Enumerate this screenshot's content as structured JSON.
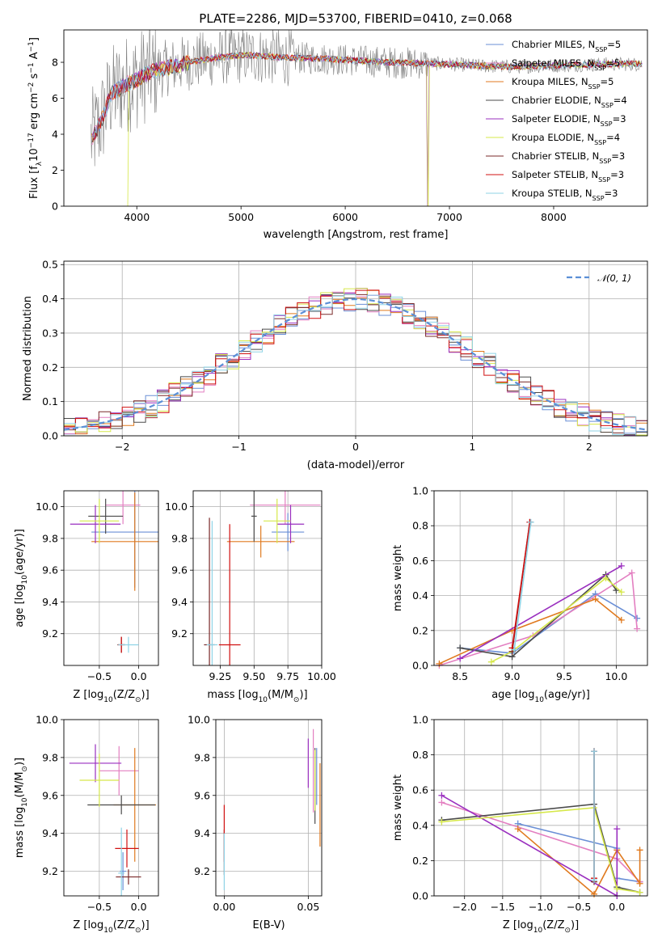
{
  "figure": {
    "title": "PLATE=2286, MJD=53700, FIBERID=0410, z=0.068"
  },
  "colors": {
    "Chabrier MILES": "#6a8fd6",
    "Salpeter MILES": "#e37fc1",
    "Kroupa MILES": "#e07a1f",
    "Chabrier ELODIE": "#4b4b4b",
    "Salpeter ELODIE": "#9a2fbf",
    "Kroupa ELODIE": "#d6e84a",
    "Chabrier STELIB": "#7a2a2a",
    "Salpeter STELIB": "#d01010",
    "Kroupa STELIB": "#8fd3e6",
    "data": "#808080",
    "gaussian": "#5b8fd6"
  },
  "chart_data": [
    {
      "id": "spectrum",
      "type": "line",
      "title": "PLATE=2286, MJD=53700, FIBERID=0410, z=0.068",
      "xlabel": "wavelength [Angstrom, rest frame]",
      "ylabel": "Flux [f_λ 10^-17 erg cm^-2 s^-1 A^-1]",
      "xlim": [
        3300,
        8900
      ],
      "ylim": [
        0,
        9.8
      ],
      "xticks": [
        4000,
        5000,
        6000,
        7000,
        8000
      ],
      "yticks": [
        0,
        2,
        4,
        6,
        8
      ],
      "grid": false,
      "legend_position": "top-right",
      "legend": [
        {
          "name": "Chabrier MILES",
          "text": "Chabrier MILES, N",
          "sub": "SSP",
          "count": "=5"
        },
        {
          "name": "Salpeter MILES",
          "text": "Salpeter MILES, N",
          "sub": "SSP",
          "count": "=5"
        },
        {
          "name": "Kroupa MILES",
          "text": "Kroupa MILES, N",
          "sub": "SSP",
          "count": "=5"
        },
        {
          "name": "Chabrier ELODIE",
          "text": "Chabrier ELODIE, N",
          "sub": "SSP",
          "count": "=4"
        },
        {
          "name": "Salpeter ELODIE",
          "text": "Salpeter ELODIE, N",
          "sub": "SSP",
          "count": "=3"
        },
        {
          "name": "Kroupa ELODIE",
          "text": "Kroupa ELODIE, N",
          "sub": "SSP",
          "count": "=4"
        },
        {
          "name": "Chabrier STELIB",
          "text": "Chabrier STELIB, N",
          "sub": "SSP",
          "count": "=3"
        },
        {
          "name": "Salpeter STELIB",
          "text": "Salpeter STELIB, N",
          "sub": "SSP",
          "count": "=3"
        },
        {
          "name": "Kroupa STELIB",
          "text": "Kroupa STELIB, N",
          "sub": "SSP",
          "count": "=3"
        }
      ],
      "continuum": {
        "x": [
          3550,
          3650,
          3750,
          3900,
          4000,
          4100,
          4300,
          4500,
          4700,
          4900,
          5100,
          5300,
          5500,
          5800,
          6100,
          6400,
          6700,
          7000,
          7300,
          7600,
          7900,
          8200,
          8500,
          8850
        ],
        "y": [
          3.6,
          4.6,
          6.2,
          6.8,
          7.0,
          7.4,
          7.7,
          8.0,
          8.2,
          8.35,
          8.4,
          8.3,
          8.25,
          8.2,
          8.1,
          8.0,
          7.95,
          7.9,
          7.8,
          7.75,
          7.8,
          7.85,
          7.9,
          7.9
        ]
      }
    },
    {
      "id": "residuals",
      "type": "histogram",
      "xlabel": "(data-model)/error",
      "ylabel": "Normed distribution",
      "xlim": [
        -2.5,
        2.5
      ],
      "ylim": [
        0,
        0.51
      ],
      "xticks": [
        -2,
        -1,
        0,
        1,
        2
      ],
      "xtick_labels": [
        "−2",
        "−1",
        "0",
        "1",
        "2"
      ],
      "yticks": [
        0.0,
        0.1,
        0.2,
        0.3,
        0.4,
        0.5
      ],
      "ytick_labels": [
        "0.0",
        "0.1",
        "0.2",
        "0.3",
        "0.4",
        "0.5"
      ],
      "grid": true,
      "legend_position": "top-right",
      "gaussian_label": "𝒩(0, 1)",
      "bin_width": 0.1
    },
    {
      "id": "age-vs-Z",
      "type": "errorbar",
      "xlabel": "Z [log10(Z/Z☉)]",
      "ylabel": "age [log10(age/yr)]",
      "xlim": [
        -0.95,
        0.25
      ],
      "ylim": [
        9.0,
        10.1
      ],
      "xticks": [
        -0.5,
        0.0
      ],
      "xtick_labels": [
        "−0.5",
        "0.0"
      ],
      "yticks": [
        9.2,
        9.4,
        9.6,
        9.8,
        10.0
      ],
      "ytick_labels": [
        "9.2",
        "9.4",
        "9.6",
        "9.8",
        "10.0"
      ],
      "grid": true,
      "points": [
        {
          "model": "Chabrier MILES",
          "x": -0.05,
          "xerr": 0.55,
          "y": 9.84,
          "yerr": 0.35
        },
        {
          "model": "Salpeter MILES",
          "x": -0.2,
          "xerr": 0.22,
          "y": 10.01,
          "yerr": 0.12
        },
        {
          "model": "Kroupa MILES",
          "x": -0.05,
          "xerr": 0.55,
          "y": 9.78,
          "yerr": 0.31
        },
        {
          "model": "Chabrier ELODIE",
          "x": -0.42,
          "xerr": 0.22,
          "y": 9.94,
          "yerr": 0.11
        },
        {
          "model": "Salpeter ELODIE",
          "x": -0.55,
          "xerr": 0.32,
          "y": 9.89,
          "yerr": 0.12
        },
        {
          "model": "Kroupa ELODIE",
          "x": -0.5,
          "xerr": 0.25,
          "y": 9.91,
          "yerr": 0.14
        },
        {
          "model": "Chabrier STELIB",
          "x": -0.22,
          "xerr": 0.05,
          "y": 9.13,
          "yerr": 0.05
        },
        {
          "model": "Salpeter STELIB",
          "x": -0.22,
          "xerr": 0.04,
          "y": 9.13,
          "yerr": 0.05
        },
        {
          "model": "Kroupa STELIB",
          "x": -0.13,
          "xerr": 0.13,
          "y": 9.13,
          "yerr": 0.05
        }
      ]
    },
    {
      "id": "age-vs-mass",
      "type": "errorbar",
      "xlabel": "mass [log10(M/M☉)]",
      "xlim": [
        9.05,
        10.0
      ],
      "ylim": [
        9.0,
        10.1
      ],
      "xticks": [
        9.25,
        9.5,
        9.75,
        10.0
      ],
      "xtick_labels": [
        "9.25",
        "9.50",
        "9.75",
        "10.00"
      ],
      "yticks": [
        9.2,
        9.4,
        9.6,
        9.8,
        10.0
      ],
      "ytick_labels": [
        "9.2",
        "9.4",
        "9.6",
        "9.8",
        "10.0"
      ],
      "grid": true,
      "points": [
        {
          "model": "Chabrier MILES",
          "x": 9.75,
          "xerr": 0.12,
          "y": 9.84,
          "yerr": 0.12
        },
        {
          "model": "Salpeter MILES",
          "x": 9.73,
          "xerr": 0.26,
          "y": 10.01,
          "yerr": 0.12
        },
        {
          "model": "Kroupa MILES",
          "x": 9.55,
          "xerr": 0.25,
          "y": 9.78,
          "yerr": 0.1
        },
        {
          "model": "Chabrier ELODIE",
          "x": 9.5,
          "xerr": 0.02,
          "y": 9.94,
          "yerr": 0.16
        },
        {
          "model": "Salpeter ELODIE",
          "x": 9.77,
          "xerr": 0.1,
          "y": 9.89,
          "yerr": 0.12
        },
        {
          "model": "Kroupa ELODIE",
          "x": 9.67,
          "xerr": 0.1,
          "y": 9.91,
          "yerr": 0.14
        },
        {
          "model": "Chabrier STELIB",
          "x": 9.17,
          "xerr": 0.04,
          "y": 9.13,
          "yerr": 0.8
        },
        {
          "model": "Salpeter STELIB",
          "x": 9.32,
          "xerr": 0.08,
          "y": 9.13,
          "yerr": 0.76
        },
        {
          "model": "Kroupa STELIB",
          "x": 9.19,
          "xerr": 0.04,
          "y": 9.13,
          "yerr": 0.78
        }
      ]
    },
    {
      "id": "weight-vs-age",
      "type": "line",
      "xlabel": "age [log10(age/yr)]",
      "ylabel": "mass weight",
      "xlim": [
        8.25,
        10.3
      ],
      "ylim": [
        0,
        1.0
      ],
      "xticks": [
        8.5,
        9.0,
        9.5,
        10.0
      ],
      "xtick_labels": [
        "8.5",
        "9.0",
        "9.5",
        "10.0"
      ],
      "yticks": [
        0.0,
        0.2,
        0.4,
        0.6,
        0.8,
        1.0
      ],
      "ytick_labels": [
        "0.0",
        "0.2",
        "0.4",
        "0.6",
        "0.8",
        "1.0"
      ],
      "grid": true,
      "series": [
        {
          "model": "Chabrier MILES",
          "x": [
            8.5,
            9.0,
            9.8,
            10.2
          ],
          "y": [
            0.1,
            0.07,
            0.41,
            0.27
          ]
        },
        {
          "model": "Salpeter MILES",
          "x": [
            8.3,
            9.2,
            10.15,
            10.2
          ],
          "y": [
            0.0,
            0.17,
            0.53,
            0.21
          ]
        },
        {
          "model": "Kroupa MILES",
          "x": [
            8.3,
            9.0,
            9.8,
            10.05
          ],
          "y": [
            0.01,
            0.2,
            0.38,
            0.26
          ]
        },
        {
          "model": "Chabrier ELODIE",
          "x": [
            8.5,
            9.0,
            9.9,
            10.0
          ],
          "y": [
            0.1,
            0.05,
            0.52,
            0.43
          ]
        },
        {
          "model": "Salpeter ELODIE",
          "x": [
            8.5,
            10.05
          ],
          "y": [
            0.04,
            0.57
          ]
        },
        {
          "model": "Kroupa ELODIE",
          "x": [
            8.8,
            9.0,
            9.9,
            10.05
          ],
          "y": [
            0.02,
            0.08,
            0.5,
            0.42
          ]
        },
        {
          "model": "Chabrier STELIB",
          "x": [
            9.0,
            9.17
          ],
          "y": [
            0.08,
            0.82
          ]
        },
        {
          "model": "Salpeter STELIB",
          "x": [
            9.0,
            9.17
          ],
          "y": [
            0.1,
            0.82
          ]
        },
        {
          "model": "Kroupa STELIB",
          "x": [
            9.02,
            9.18
          ],
          "y": [
            0.09,
            0.82
          ]
        }
      ]
    },
    {
      "id": "mass-vs-Z",
      "type": "errorbar",
      "xlabel": "Z [log10(Z/Z☉)]",
      "ylabel": "mass [log10(M/M☉)]",
      "xlim": [
        -0.95,
        0.25
      ],
      "ylim": [
        9.07,
        10.0
      ],
      "xticks": [
        -0.5,
        0.0
      ],
      "xtick_labels": [
        "−0.5",
        "0.0"
      ],
      "yticks": [
        9.2,
        9.4,
        9.6,
        9.8,
        10.0
      ],
      "ytick_labels": [
        "9.2",
        "9.4",
        "9.6",
        "9.8",
        "10.0"
      ],
      "grid": true,
      "points": [
        {
          "model": "Chabrier MILES",
          "x": -0.2,
          "xerr": 0.04,
          "y": 9.2,
          "yerr": 0.1
        },
        {
          "model": "Salpeter MILES",
          "x": -0.25,
          "xerr": 0.25,
          "y": 9.73,
          "yerr": 0.13
        },
        {
          "model": "Kroupa MILES",
          "x": -0.05,
          "xerr": 0.27,
          "y": 9.55,
          "yerr": 0.3
        },
        {
          "model": "Chabrier ELODIE",
          "x": -0.22,
          "xerr": 0.43,
          "y": 9.55,
          "yerr": 0.05
        },
        {
          "model": "Salpeter ELODIE",
          "x": -0.55,
          "xerr": 0.33,
          "y": 9.77,
          "yerr": 0.1
        },
        {
          "model": "Kroupa ELODIE",
          "x": -0.5,
          "xerr": 0.25,
          "y": 9.68,
          "yerr": 0.14
        },
        {
          "model": "Chabrier STELIB",
          "x": -0.13,
          "xerr": 0.16,
          "y": 9.17,
          "yerr": 0.04
        },
        {
          "model": "Salpeter STELIB",
          "x": -0.15,
          "xerr": 0.15,
          "y": 9.32,
          "yerr": 0.1
        },
        {
          "model": "Kroupa STELIB",
          "x": -0.22,
          "xerr": 0.04,
          "y": 9.19,
          "yerr": 0.24
        }
      ]
    },
    {
      "id": "mass-vs-ebv",
      "type": "errorbar",
      "xlabel": "E(B-V)",
      "xlim": [
        -0.005,
        0.058
      ],
      "ylim": [
        9.07,
        10.0
      ],
      "xticks": [
        0.0,
        0.05
      ],
      "xtick_labels": [
        "0.00",
        "0.05"
      ],
      "yticks": [
        9.2,
        9.4,
        9.6,
        9.8,
        10.0
      ],
      "ytick_labels": [
        "9.2",
        "9.4",
        "9.6",
        "9.8",
        "10.0"
      ],
      "grid": true,
      "points": [
        {
          "model": "Chabrier MILES",
          "x": 0.055,
          "xerr": 0,
          "y": 9.7,
          "yerr": 0.15
        },
        {
          "model": "Salpeter MILES",
          "x": 0.053,
          "xerr": 0,
          "y": 9.73,
          "yerr": 0.22
        },
        {
          "model": "Kroupa MILES",
          "x": 0.057,
          "xerr": 0,
          "y": 9.55,
          "yerr": 0.22
        },
        {
          "model": "Chabrier ELODIE",
          "x": 0.054,
          "xerr": 0,
          "y": 9.65,
          "yerr": 0.2
        },
        {
          "model": "Salpeter ELODIE",
          "x": 0.05,
          "xerr": 0,
          "y": 9.77,
          "yerr": 0.13
        },
        {
          "model": "Kroupa ELODIE",
          "x": 0.054,
          "xerr": 0,
          "y": 9.68,
          "yerr": 0.16
        },
        {
          "model": "Chabrier STELIB",
          "x": 0.0,
          "xerr": 0,
          "y": 9.3,
          "yerr": 0.12
        },
        {
          "model": "Salpeter STELIB",
          "x": 0.0,
          "xerr": 0,
          "y": 9.4,
          "yerr": 0.15
        },
        {
          "model": "Kroupa STELIB",
          "x": 0.0,
          "xerr": 0,
          "y": 9.25,
          "yerr": 0.15
        }
      ]
    },
    {
      "id": "weight-vs-Z",
      "type": "line",
      "xlabel": "Z [log10(Z/Z☉)]",
      "ylabel": "mass weight",
      "xlim": [
        -2.4,
        0.4
      ],
      "ylim": [
        0,
        1.0
      ],
      "xticks": [
        -2.0,
        -1.5,
        -1.0,
        -0.5,
        0.0
      ],
      "xtick_labels": [
        "−2.0",
        "−1.5",
        "−1.0",
        "−0.5",
        "0.0"
      ],
      "yticks": [
        0.0,
        0.2,
        0.4,
        0.6,
        0.8,
        1.0
      ],
      "ytick_labels": [
        "0.0",
        "0.2",
        "0.4",
        "0.6",
        "0.8",
        "1.0"
      ],
      "grid": true,
      "series": [
        {
          "model": "Chabrier MILES",
          "x": [
            -1.3,
            0.0,
            0.0,
            0.3
          ],
          "y": [
            0.41,
            0.27,
            0.1,
            0.08
          ]
        },
        {
          "model": "Salpeter MILES",
          "x": [
            -2.3,
            0.0,
            0.3
          ],
          "y": [
            0.53,
            0.21,
            0.08
          ]
        },
        {
          "model": "Kroupa MILES",
          "x": [
            -1.3,
            -0.3,
            0.0,
            0.3,
            0.3
          ],
          "y": [
            0.38,
            0.01,
            0.26,
            0.07,
            0.26
          ]
        },
        {
          "model": "Chabrier ELODIE",
          "x": [
            -2.3,
            -0.3,
            0.0,
            0.3
          ],
          "y": [
            0.43,
            0.52,
            0.05,
            0.02
          ]
        },
        {
          "model": "Salpeter ELODIE",
          "x": [
            -2.3,
            0.0,
            0.0
          ],
          "y": [
            0.57,
            0.0,
            0.38
          ]
        },
        {
          "model": "Kroupa ELODIE",
          "x": [
            -2.3,
            -0.3,
            0.0,
            0.3
          ],
          "y": [
            0.42,
            0.5,
            0.04,
            0.02
          ]
        },
        {
          "model": "Chabrier STELIB",
          "x": [
            -0.3,
            -0.3
          ],
          "y": [
            0.08,
            0.82
          ]
        },
        {
          "model": "Salpeter STELIB",
          "x": [
            -0.3,
            -0.3
          ],
          "y": [
            0.1,
            0.82
          ]
        },
        {
          "model": "Kroupa STELIB",
          "x": [
            -0.3,
            -0.3
          ],
          "y": [
            0.09,
            0.82
          ]
        }
      ]
    }
  ]
}
